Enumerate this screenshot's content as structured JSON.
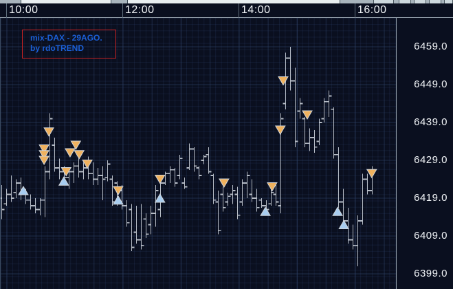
{
  "chart": {
    "legend": {
      "line1": "mix-DAX - 29AGO.",
      "line2": "by rdoTREND"
    }
  },
  "chart_data": {
    "type": "ohlc-bar",
    "title": "mix-DAX - 29AGO.",
    "subtitle": "by rdoTREND",
    "instrument": "DAX",
    "date_label": "29AGO.",
    "interval_minutes": 5,
    "start_time": "09:55",
    "legend_position": "top-left",
    "grid": true,
    "x_tick_labels": [
      "10:00",
      "12:00",
      "14:00",
      "16:00"
    ],
    "y_tick_labels": [
      "6459.0",
      "6449.0",
      "6439.0",
      "6429.0",
      "6419.0",
      "6409.0",
      "6399.0"
    ],
    "y_ticks": [
      6459,
      6449,
      6439,
      6429,
      6419,
      6409,
      6399
    ],
    "ylim": [
      6395,
      6466.5
    ],
    "bars_ohlc": [
      [
        6419,
        6422.5,
        6413.5,
        6416
      ],
      [
        6417.5,
        6421.5,
        6417,
        6420
      ],
      [
        6420,
        6425,
        6418,
        6419
      ],
      [
        6420.5,
        6424,
        6419,
        6423
      ],
      [
        6423,
        6424.5,
        6418.5,
        6420
      ],
      [
        6420,
        6421.5,
        6417.5,
        6418.5
      ],
      [
        6418.5,
        6420,
        6416,
        6417
      ],
      [
        6417,
        6419,
        6415,
        6416
      ],
      [
        6416,
        6419,
        6414.5,
        6418.5
      ],
      [
        6418.5,
        6427.5,
        6414,
        6426
      ],
      [
        6426,
        6441.5,
        6424,
        6440
      ],
      [
        6433,
        6435,
        6426,
        6427
      ],
      [
        6427,
        6429.5,
        6424,
        6426
      ],
      [
        6426,
        6427.5,
        6422.5,
        6424.5
      ],
      [
        6424.5,
        6427,
        6421.5,
        6426
      ],
      [
        6426,
        6428.5,
        6423,
        6427.5
      ],
      [
        6427.5,
        6430,
        6424.5,
        6426
      ],
      [
        6426,
        6428.5,
        6424,
        6427
      ],
      [
        6427,
        6430,
        6424,
        6425.5
      ],
      [
        6425.5,
        6428.5,
        6422.5,
        6424
      ],
      [
        6424,
        6427,
        6422.5,
        6425
      ],
      [
        6425,
        6427.5,
        6418.5,
        6424
      ],
      [
        6424.5,
        6429,
        6423.5,
        6428
      ],
      [
        6424,
        6425,
        6417,
        6418
      ],
      [
        6423,
        6423.5,
        6417,
        6418.5
      ],
      [
        6421,
        6422.5,
        6416,
        6417
      ],
      [
        6417,
        6418.5,
        6411.5,
        6412.5
      ],
      [
        6416,
        6417.5,
        6405,
        6406
      ],
      [
        6410,
        6417,
        6407,
        6408
      ],
      [
        6408,
        6417.5,
        6405.5,
        6406.5
      ],
      [
        6413.5,
        6415,
        6408.5,
        6409.5
      ],
      [
        6412,
        6417,
        6409.5,
        6415
      ],
      [
        6415,
        6422.5,
        6411.5,
        6421
      ],
      [
        6416,
        6425,
        6414,
        6423
      ],
      [
        6423,
        6426,
        6422.5,
        6425.5
      ],
      [
        6425.5,
        6427.5,
        6423,
        6426.5
      ],
      [
        6426.5,
        6427,
        6422,
        6423
      ],
      [
        6425,
        6430.5,
        6424,
        6429.5
      ],
      [
        6423,
        6424.5,
        6421.5,
        6422
      ],
      [
        6427,
        6433.5,
        6426.5,
        6432
      ],
      [
        6432,
        6432.5,
        6426,
        6427.5
      ],
      [
        6427,
        6427.5,
        6424,
        6425
      ],
      [
        6429,
        6430.5,
        6428,
        6430
      ],
      [
        6430.5,
        6432.5,
        6425.5,
        6426
      ],
      [
        6425,
        6425.5,
        6417.5,
        6418.5
      ],
      [
        6418,
        6421,
        6409.5,
        6410.5
      ],
      [
        6420,
        6422,
        6415.5,
        6416.5
      ],
      [
        6418,
        6420.5,
        6417,
        6419.5
      ],
      [
        6420,
        6422.5,
        6417.5,
        6421
      ],
      [
        6420,
        6422,
        6413.5,
        6414.5
      ],
      [
        6418,
        6424,
        6417,
        6423
      ],
      [
        6423,
        6426,
        6419,
        6425
      ],
      [
        6420,
        6424,
        6418,
        6419
      ],
      [
        6419,
        6421.5,
        6415.5,
        6416.5
      ],
      [
        6418.5,
        6419,
        6416.5,
        6417
      ],
      [
        6417,
        6418.5,
        6415,
        6416
      ],
      [
        6417.5,
        6421.5,
        6417,
        6420.5
      ],
      [
        6420,
        6422.5,
        6417,
        6418
      ],
      [
        6417,
        6441.5,
        6415,
        6440
      ],
      [
        6444,
        6457.5,
        6442.5,
        6456
      ],
      [
        6456,
        6459,
        6447.5,
        6450
      ],
      [
        6450,
        6453.5,
        6432.5,
        6434
      ],
      [
        6442,
        6445.5,
        6440,
        6444
      ],
      [
        6440,
        6440.5,
        6432.5,
        6433.5
      ],
      [
        6433.5,
        6437.5,
        6431.5,
        6435
      ],
      [
        6435,
        6437,
        6431,
        6432.5
      ],
      [
        6434,
        6440,
        6433,
        6439
      ],
      [
        6440,
        6445.5,
        6439,
        6444.5
      ],
      [
        6444.5,
        6447.5,
        6440.5,
        6446
      ],
      [
        6442.5,
        6443,
        6429.5,
        6430.5
      ],
      [
        6430.5,
        6432.5,
        6416.5,
        6418
      ],
      [
        6418,
        6421.5,
        6411.5,
        6413
      ],
      [
        6413,
        6416.5,
        6407,
        6408
      ],
      [
        6408,
        6412,
        6405.5,
        6406.5
      ],
      [
        6406.5,
        6414.5,
        6401,
        6413
      ],
      [
        6413,
        6425.5,
        6412,
        6424
      ],
      [
        6424,
        6425.5,
        6420,
        6421
      ],
      [
        6421,
        6427.5,
        6420,
        6426.5
      ]
    ],
    "signals": [
      {
        "i": 4.5,
        "price": 6421,
        "side": "buy"
      },
      {
        "i": 8.8,
        "price": 6432,
        "side": "sell"
      },
      {
        "i": 8.8,
        "price": 6430.5,
        "side": "sell"
      },
      {
        "i": 8.8,
        "price": 6429,
        "side": "sell"
      },
      {
        "i": 9.8,
        "price": 6436.5,
        "side": "sell"
      },
      {
        "i": 12.9,
        "price": 6423.5,
        "side": "buy"
      },
      {
        "i": 13.4,
        "price": 6426,
        "side": "sell"
      },
      {
        "i": 14.2,
        "price": 6431,
        "side": "sell"
      },
      {
        "i": 15.4,
        "price": 6433,
        "side": "sell"
      },
      {
        "i": 16.1,
        "price": 6430.5,
        "side": "sell"
      },
      {
        "i": 17.8,
        "price": 6428,
        "side": "sell"
      },
      {
        "i": 24.2,
        "price": 6421,
        "side": "sell"
      },
      {
        "i": 24.2,
        "price": 6418.5,
        "side": "buy"
      },
      {
        "i": 32.9,
        "price": 6424,
        "side": "sell"
      },
      {
        "i": 32.9,
        "price": 6419,
        "side": "buy"
      },
      {
        "i": 46.2,
        "price": 6423,
        "side": "sell"
      },
      {
        "i": 54.8,
        "price": 6415.5,
        "side": "buy"
      },
      {
        "i": 56.2,
        "price": 6422,
        "side": "sell"
      },
      {
        "i": 57.9,
        "price": 6437,
        "side": "sell"
      },
      {
        "i": 58.5,
        "price": 6450,
        "side": "sell"
      },
      {
        "i": 63.5,
        "price": 6441,
        "side": "sell"
      },
      {
        "i": 69.8,
        "price": 6415.5,
        "side": "buy"
      },
      {
        "i": 71.1,
        "price": 6412,
        "side": "buy"
      },
      {
        "i": 76.9,
        "price": 6425.5,
        "side": "sell"
      }
    ],
    "colors": {
      "background": "#0a0f1f",
      "bar": "#b6bcc6",
      "sell_arrow": "#f0b25e",
      "buy_arrow": "#a8cdf0",
      "arrow_outline": "#cfd4da",
      "legend_text": "#1b5fd6",
      "legend_border": "#c92323",
      "axis_text": "#f2f5f8",
      "grid_major": "#31466b"
    }
  }
}
